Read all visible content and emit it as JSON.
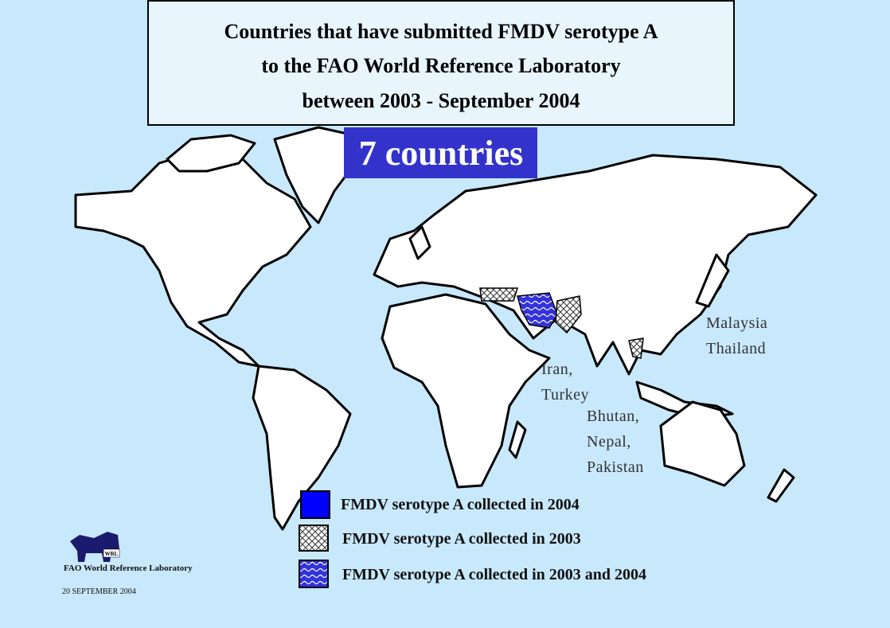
{
  "header": {
    "title_lines": [
      "Countries that have submitted FMDV serotype A",
      "to the FAO World Reference Laboratory",
      "between 2003 - September 2004"
    ]
  },
  "badge": "7 countries",
  "annotations": [
    {
      "lines": [
        "Malaysia",
        "Thailand"
      ]
    },
    {
      "lines": [
        "Iran,",
        "Turkey"
      ]
    },
    {
      "lines": [
        "Bhutan,",
        "Nepal,",
        "Pakistan"
      ]
    }
  ],
  "legend": [
    "FMDV serotype A collected in 2004",
    "FMDV serotype A collected in 2003",
    "FMDV serotype A collected in 2003 and 2004"
  ],
  "footer": {
    "logo_text": "WRL",
    "organization": "FAO World Reference Laboratory",
    "date": "20 SEPTEMBER  2004"
  }
}
